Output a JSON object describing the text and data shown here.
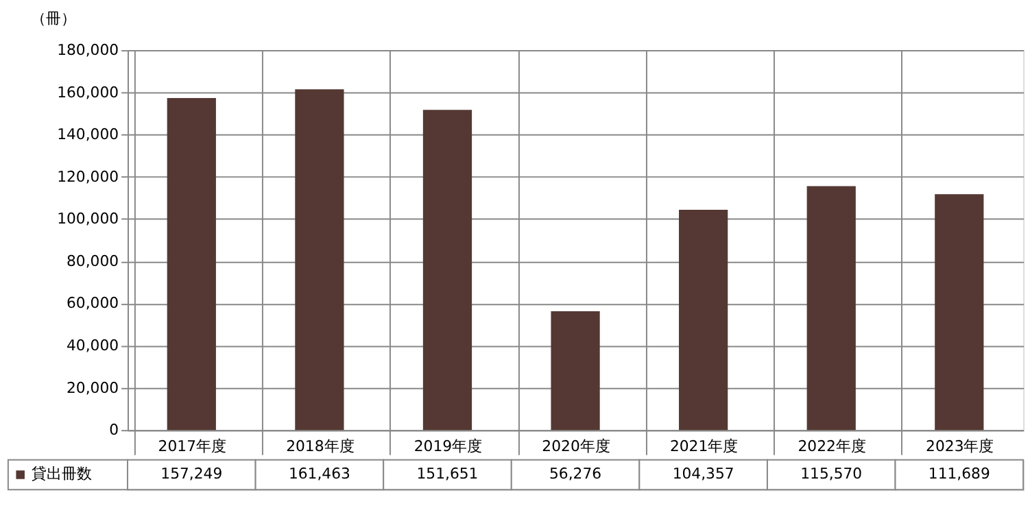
{
  "chart_data": {
    "type": "bar",
    "ylabel": "（冊）",
    "categories": [
      "2017年度",
      "2018年度",
      "2019年度",
      "2020年度",
      "2021年度",
      "2022年度",
      "2023年度"
    ],
    "series": [
      {
        "name": "貸出冊数",
        "color": "#553833",
        "values": [
          157249,
          161463,
          151651,
          56276,
          104357,
          115570,
          111689
        ],
        "value_labels": [
          "157,249",
          "161,463",
          "151,651",
          "56,276",
          "104,357",
          "115,570",
          "111,689"
        ]
      }
    ],
    "ylim": [
      0,
      180000
    ],
    "yticks": [
      0,
      {
        "value": 20000,
        "label": "20,000"
      },
      {
        "value": 40000,
        "label": "40,000"
      },
      {
        "value": 60000,
        "label": "60,000"
      },
      {
        "value": 80000,
        "label": "80,000"
      },
      {
        "value": 100000,
        "label": "100,000"
      },
      {
        "value": 120000,
        "label": "120,000"
      },
      {
        "value": 140000,
        "label": "140,000"
      },
      {
        "value": 160000,
        "label": "160,000"
      },
      {
        "value": 180000,
        "label": "180,000"
      }
    ],
    "grid": "y",
    "legend": "bottom left"
  }
}
